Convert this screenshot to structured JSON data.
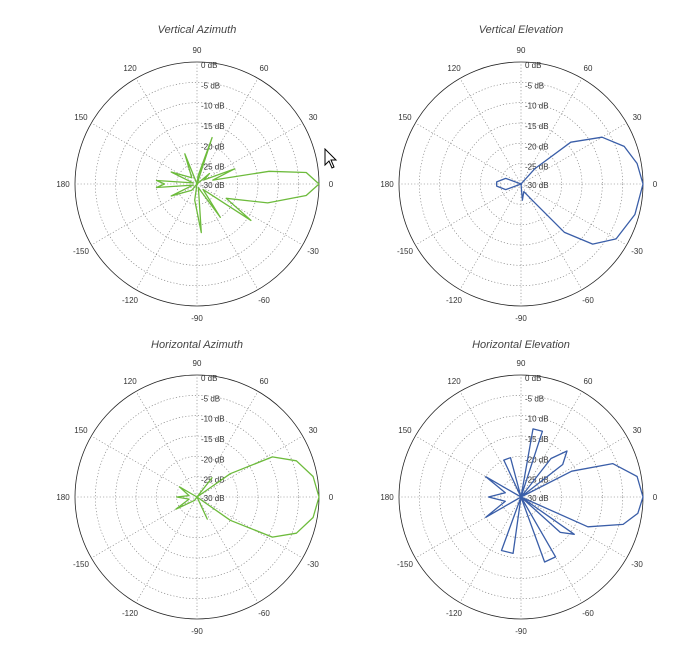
{
  "chart_data": [
    {
      "type": "polar",
      "title": "Vertical Azimuth",
      "color": "#6dbb3c",
      "angle_labels": [
        "90",
        "60",
        "30",
        "0",
        "-30",
        "-60",
        "-90",
        "-120",
        "-150",
        "180",
        "150",
        "120"
      ],
      "radial_labels": [
        "0 dB",
        "-5 dB",
        "-10 dB",
        "-15 dB",
        "-20 dB",
        "-25 dB",
        "-30 dB"
      ],
      "rlim_db": [
        -30,
        0
      ],
      "grid": true,
      "pattern": [
        {
          "angle": 0,
          "db": 0
        },
        {
          "angle": 6,
          "db": -3
        },
        {
          "angle": 10,
          "db": -12
        },
        {
          "angle": 14,
          "db": -26
        },
        {
          "angle": 22,
          "db": -20
        },
        {
          "angle": 30,
          "db": -28
        },
        {
          "angle": 40,
          "db": -26
        },
        {
          "angle": 55,
          "db": -30
        },
        {
          "angle": 72,
          "db": -18
        },
        {
          "angle": 82,
          "db": -28
        },
        {
          "angle": 90,
          "db": -30
        },
        {
          "angle": 112,
          "db": -22
        },
        {
          "angle": 130,
          "db": -28
        },
        {
          "angle": 155,
          "db": -23
        },
        {
          "angle": 165,
          "db": -29
        },
        {
          "angle": 175,
          "db": -20
        },
        {
          "angle": 180,
          "db": -22
        },
        {
          "angle": 185,
          "db": -20
        },
        {
          "angle": 195,
          "db": -29
        },
        {
          "angle": 205,
          "db": -23
        },
        {
          "angle": 230,
          "db": -28
        },
        {
          "angle": 245,
          "db": -30
        },
        {
          "angle": 262,
          "db": -26
        },
        {
          "angle": 275,
          "db": -18
        },
        {
          "angle": 290,
          "db": -29
        },
        {
          "angle": 305,
          "db": -20
        },
        {
          "angle": 318,
          "db": -28
        },
        {
          "angle": 326,
          "db": -14
        },
        {
          "angle": 334,
          "db": -22
        },
        {
          "angle": 345,
          "db": -12
        },
        {
          "angle": 354,
          "db": -3
        },
        {
          "angle": 360,
          "db": 0
        }
      ]
    },
    {
      "type": "polar",
      "title": "Vertical Elevation",
      "color": "#3a5ea8",
      "angle_labels": [
        "90",
        "60",
        "30",
        "0",
        "-30",
        "-60",
        "-90",
        "-120",
        "-150",
        "180",
        "150",
        "120"
      ],
      "radial_labels": [
        "0 dB",
        "-5 dB",
        "-10 dB",
        "-15 dB",
        "-20 dB",
        "-25 dB",
        "-30 dB"
      ],
      "rlim_db": [
        -30,
        0
      ],
      "grid": true,
      "pattern": [
        {
          "angle": 0,
          "db": 0
        },
        {
          "angle": 10,
          "db": -1
        },
        {
          "angle": 20,
          "db": -3
        },
        {
          "angle": 30,
          "db": -7
        },
        {
          "angle": 40,
          "db": -14
        },
        {
          "angle": 48,
          "db": -25
        },
        {
          "angle": 60,
          "db": -30
        },
        {
          "angle": 120,
          "db": -30
        },
        {
          "angle": 160,
          "db": -26
        },
        {
          "angle": 175,
          "db": -24
        },
        {
          "angle": 180,
          "db": -24
        },
        {
          "angle": 185,
          "db": -24
        },
        {
          "angle": 200,
          "db": -26
        },
        {
          "angle": 240,
          "db": -30
        },
        {
          "angle": 275,
          "db": -26
        },
        {
          "angle": 290,
          "db": -28
        },
        {
          "angle": 305,
          "db": -25
        },
        {
          "angle": 312,
          "db": -14
        },
        {
          "angle": 320,
          "db": -7
        },
        {
          "angle": 330,
          "db": -3
        },
        {
          "angle": 345,
          "db": -1
        },
        {
          "angle": 360,
          "db": 0
        }
      ]
    },
    {
      "type": "polar",
      "title": "Horizontal Azimuth",
      "color": "#6dbb3c",
      "angle_labels": [
        "90",
        "60",
        "30",
        "0",
        "-30",
        "-60",
        "-90",
        "-120",
        "-150",
        "180",
        "150",
        "120"
      ],
      "radial_labels": [
        "0 dB",
        "-5 dB",
        "-10 dB",
        "-15 dB",
        "-20 dB",
        "-25 dB",
        "-30 dB"
      ],
      "rlim_db": [
        -30,
        0
      ],
      "grid": true,
      "pattern": [
        {
          "angle": 0,
          "db": 0
        },
        {
          "angle": 10,
          "db": -1
        },
        {
          "angle": 20,
          "db": -4
        },
        {
          "angle": 28,
          "db": -9
        },
        {
          "angle": 35,
          "db": -20
        },
        {
          "angle": 40,
          "db": -30
        },
        {
          "angle": 52,
          "db": -24
        },
        {
          "angle": 65,
          "db": -30
        },
        {
          "angle": 95,
          "db": -30
        },
        {
          "angle": 150,
          "db": -25
        },
        {
          "angle": 170,
          "db": -28
        },
        {
          "angle": 180,
          "db": -25
        },
        {
          "angle": 195,
          "db": -28
        },
        {
          "angle": 210,
          "db": -24
        },
        {
          "angle": 235,
          "db": -29
        },
        {
          "angle": 270,
          "db": -30
        },
        {
          "angle": 295,
          "db": -24
        },
        {
          "angle": 315,
          "db": -30
        },
        {
          "angle": 325,
          "db": -20
        },
        {
          "angle": 332,
          "db": -9
        },
        {
          "angle": 340,
          "db": -4
        },
        {
          "angle": 350,
          "db": -1
        },
        {
          "angle": 360,
          "db": 0
        }
      ]
    },
    {
      "type": "polar",
      "title": "Horizontal Elevation",
      "color": "#3a5ea8",
      "angle_labels": [
        "90",
        "60",
        "30",
        "0",
        "-30",
        "-60",
        "-90",
        "-120",
        "-150",
        "180",
        "150",
        "120"
      ],
      "radial_labels": [
        "0 dB",
        "-5 dB",
        "-10 dB",
        "-15 dB",
        "-20 dB",
        "-25 dB",
        "-30 dB"
      ],
      "rlim_db": [
        -30,
        0
      ],
      "grid": true,
      "pattern": [
        {
          "angle": 0,
          "db": 0
        },
        {
          "angle": 10,
          "db": -1
        },
        {
          "angle": 20,
          "db": -6
        },
        {
          "angle": 27,
          "db": -16
        },
        {
          "angle": 32,
          "db": -30
        },
        {
          "angle": 38,
          "db": -17
        },
        {
          "angle": 45,
          "db": -14
        },
        {
          "angle": 52,
          "db": -18
        },
        {
          "angle": 58,
          "db": -30
        },
        {
          "angle": 72,
          "db": -13
        },
        {
          "angle": 80,
          "db": -13
        },
        {
          "angle": 88,
          "db": -30
        },
        {
          "angle": 105,
          "db": -20
        },
        {
          "angle": 115,
          "db": -20
        },
        {
          "angle": 125,
          "db": -30
        },
        {
          "angle": 150,
          "db": -20
        },
        {
          "angle": 165,
          "db": -26
        },
        {
          "angle": 180,
          "db": -22
        },
        {
          "angle": 195,
          "db": -26
        },
        {
          "angle": 210,
          "db": -20
        },
        {
          "angle": 235,
          "db": -30
        },
        {
          "angle": 250,
          "db": -16
        },
        {
          "angle": 262,
          "db": -16
        },
        {
          "angle": 275,
          "db": -30
        },
        {
          "angle": 290,
          "db": -13
        },
        {
          "angle": 300,
          "db": -13
        },
        {
          "angle": 310,
          "db": -30
        },
        {
          "angle": 318,
          "db": -17
        },
        {
          "angle": 325,
          "db": -14
        },
        {
          "angle": 330,
          "db": -30
        },
        {
          "angle": 336,
          "db": -12
        },
        {
          "angle": 345,
          "db": -4
        },
        {
          "angle": 352,
          "db": -1
        },
        {
          "angle": 360,
          "db": 0
        }
      ]
    }
  ]
}
